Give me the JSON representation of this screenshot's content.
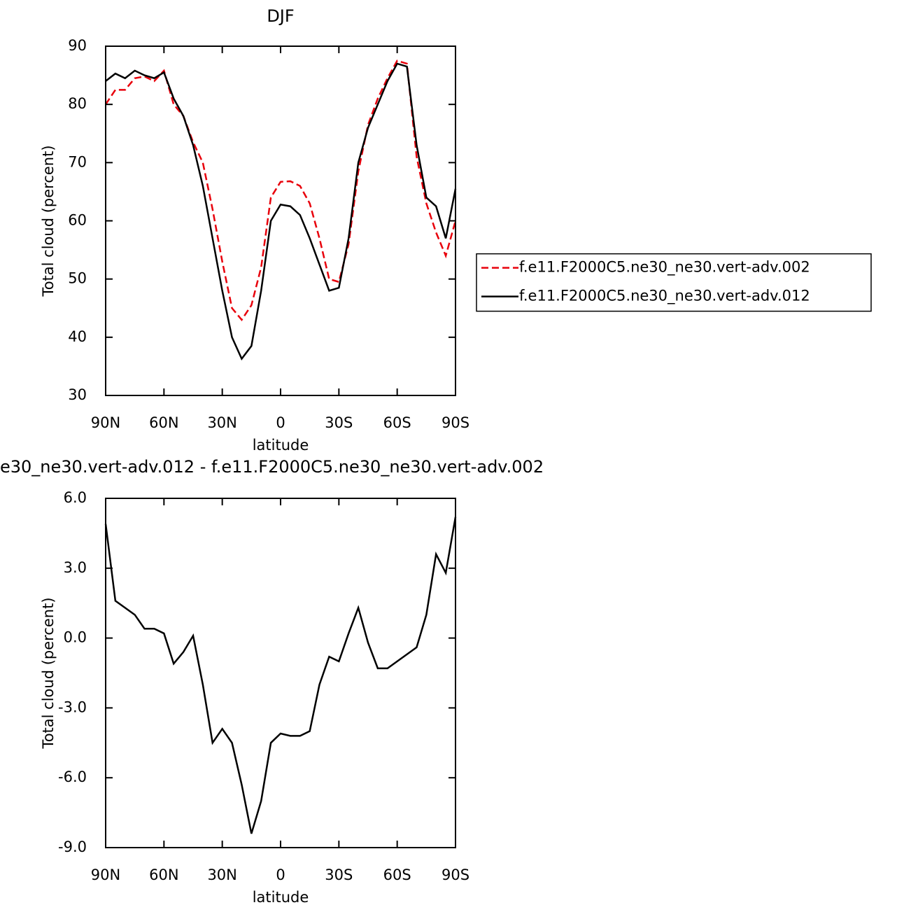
{
  "chart_data": [
    {
      "type": "line",
      "title": "DJF",
      "x": [
        90,
        85,
        80,
        75,
        70,
        65,
        60,
        55,
        50,
        45,
        40,
        35,
        30,
        25,
        20,
        15,
        10,
        5,
        0,
        -5,
        -10,
        -15,
        -20,
        -25,
        -30,
        -35,
        -40,
        -45,
        -50,
        -55,
        -60,
        -65,
        -70,
        -75,
        -80,
        -85,
        -90
      ],
      "series": [
        {
          "name": "f.e11.F2000C5.ne30_ne30.vert-adv.002",
          "color": "#e8000b",
          "dash": true,
          "values": [
            80,
            82.5,
            82.5,
            84.5,
            84.8,
            84,
            85.8,
            80,
            78,
            73.5,
            70,
            62,
            53,
            45,
            43,
            45.5,
            52,
            64,
            66.7,
            66.8,
            66,
            63,
            57,
            50,
            49.5,
            56,
            68.5,
            76.5,
            81,
            84.5,
            87.5,
            87,
            71,
            63,
            58,
            54,
            60
          ]
        },
        {
          "name": "f.e11.F2000C5.ne30_ne30.vert-adv.012",
          "color": "#000000",
          "dash": false,
          "values": [
            84,
            85.3,
            84.5,
            85.8,
            85,
            84.5,
            85.5,
            81,
            78,
            73,
            66,
            57,
            48,
            40,
            36.3,
            38.5,
            48,
            60,
            62.8,
            62.5,
            61,
            57,
            52.5,
            48,
            48.5,
            57,
            70,
            76,
            80,
            84,
            87,
            86.5,
            73,
            64,
            62.5,
            57,
            65.5
          ]
        }
      ],
      "xlim": [
        90,
        -90
      ],
      "xticks": [
        {
          "value": 90,
          "label": "90N"
        },
        {
          "value": 60,
          "label": "60N"
        },
        {
          "value": 30,
          "label": "30N"
        },
        0,
        {
          "value": -30,
          "label": "30S"
        },
        {
          "value": -60,
          "label": "60S"
        },
        {
          "value": -90,
          "label": "90S"
        }
      ],
      "ylim": [
        30,
        90
      ],
      "yticks": [
        30,
        40,
        50,
        60,
        70,
        80,
        90
      ],
      "xlabel": "latitude",
      "ylabel": "Total cloud (percent)",
      "legend": "right"
    },
    {
      "type": "line",
      "title": "e30_ne30.vert-adv.012 - f.e11.F2000C5.ne30_ne30.vert-adv.002",
      "x": [
        90,
        85,
        80,
        75,
        70,
        65,
        60,
        55,
        50,
        45,
        40,
        35,
        30,
        25,
        20,
        15,
        10,
        5,
        0,
        -5,
        -10,
        -15,
        -20,
        -25,
        -30,
        -35,
        -40,
        -45,
        -50,
        -55,
        -60,
        -65,
        -70,
        -75,
        -80,
        -85,
        -90
      ],
      "series": [
        {
          "color": "#000000",
          "dash": false,
          "values": [
            4.9,
            1.6,
            1.3,
            1.0,
            0.4,
            0.4,
            0.2,
            -1.1,
            -0.6,
            0.1,
            -2,
            -4.5,
            -3.9,
            -4.5,
            -6.3,
            -8.4,
            -7,
            -4.5,
            -4.1,
            -4.2,
            -4.2,
            -4,
            -2,
            -0.8,
            -1,
            0.2,
            1.3,
            -0.2,
            -1.3,
            -1.3,
            -1.0,
            -0.7,
            -0.4,
            1,
            3.6,
            2.8,
            5.2
          ]
        }
      ],
      "xlim": [
        90,
        -90
      ],
      "xticks": [
        {
          "value": 90,
          "label": "90N"
        },
        {
          "value": 60,
          "label": "60N"
        },
        {
          "value": 30,
          "label": "30N"
        },
        0,
        {
          "value": -30,
          "label": "30S"
        },
        {
          "value": -60,
          "label": "60S"
        },
        {
          "value": -90,
          "label": "90S"
        }
      ],
      "ylim": [
        -9,
        6
      ],
      "yticks": [
        {
          "value": -9,
          "label": "-9.0"
        },
        {
          "value": -6,
          "label": "-6.0"
        },
        {
          "value": -3,
          "label": "-3.0"
        },
        {
          "value": 0,
          "label": "0.0"
        },
        {
          "value": 3,
          "label": "3.0"
        },
        {
          "value": 6,
          "label": "6.0"
        }
      ],
      "xlabel": "latitude",
      "ylabel": "Total cloud (percent)"
    }
  ]
}
